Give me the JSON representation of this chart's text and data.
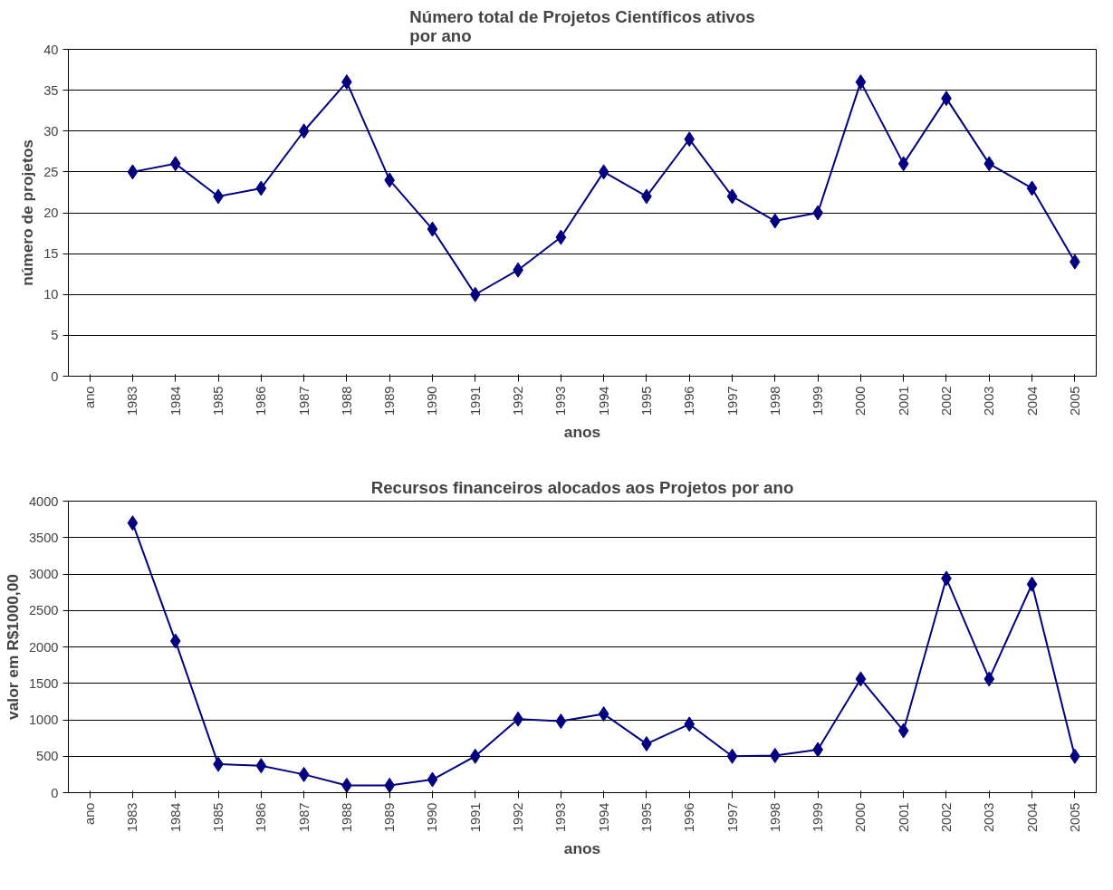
{
  "chart_data": [
    {
      "type": "line",
      "title": "Número total de Projetos Científicos ativos\npor ano",
      "xlabel": "anos",
      "ylabel": "número de projetos",
      "categories": [
        "ano",
        "1983",
        "1984",
        "1985",
        "1986",
        "1987",
        "1988",
        "1989",
        "1990",
        "1991",
        "1992",
        "1993",
        "1994",
        "1995",
        "1996",
        "1997",
        "1998",
        "1999",
        "2000",
        "2001",
        "2002",
        "2003",
        "2004",
        "2005"
      ],
      "series": [
        {
          "color": "#000080",
          "values": [
            null,
            25,
            26,
            22,
            23,
            30,
            36,
            24,
            18,
            10,
            13,
            17,
            25,
            22,
            29,
            22,
            19,
            20,
            36,
            26,
            34,
            26,
            23,
            14
          ]
        }
      ],
      "ylim": [
        0,
        40
      ],
      "yticks": [
        0,
        5,
        10,
        15,
        20,
        25,
        30,
        35,
        40
      ],
      "grid": "y",
      "marker": "diamond",
      "line_style": "solid"
    },
    {
      "type": "line",
      "title": "Recursos financeiros alocados aos Projetos por ano",
      "xlabel": "anos",
      "ylabel": "valor em R$1000,00",
      "categories": [
        "ano",
        "1983",
        "1984",
        "1985",
        "1986",
        "1987",
        "1988",
        "1989",
        "1990",
        "1991",
        "1992",
        "1993",
        "1994",
        "1995",
        "1996",
        "1997",
        "1998",
        "1999",
        "2000",
        "2001",
        "2002",
        "2003",
        "2004",
        "2005"
      ],
      "series": [
        {
          "color": "#000080",
          "values": [
            null,
            3700,
            2080,
            390,
            370,
            250,
            100,
            100,
            180,
            500,
            1010,
            980,
            1080,
            670,
            940,
            500,
            510,
            590,
            1560,
            850,
            2940,
            1560,
            2860,
            500
          ]
        }
      ],
      "ylim": [
        0,
        4000
      ],
      "yticks": [
        0,
        500,
        1000,
        1500,
        2000,
        2500,
        3000,
        3500,
        4000
      ],
      "grid": "y",
      "marker": "diamond",
      "line_style": "solid"
    }
  ]
}
